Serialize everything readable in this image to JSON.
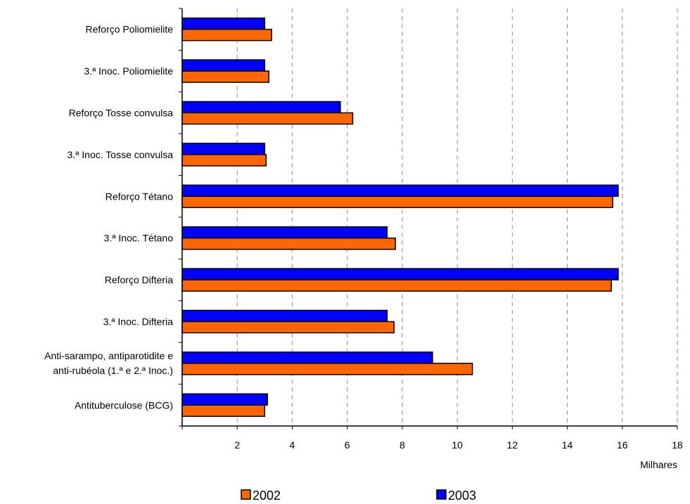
{
  "chart_data": {
    "type": "bar",
    "orientation": "horizontal",
    "categories": [
      "Reforço Poliomielite",
      "3.ª Inoc. Poliomielite",
      "Reforço Tosse convulsa",
      "3.ª Inoc. Tosse convulsa",
      "Reforço Tétano",
      "3.ª Inoc. Tétano",
      "Reforço Difteria",
      "3.ª Inoc. Difteria",
      [
        "Anti-sarampo, antiparotidite e",
        "anti-rubéola (1.ª e 2.ª Inoc.)"
      ],
      "Antituberculose (BCG)"
    ],
    "series": [
      {
        "name": "2003",
        "color": "#0000FF",
        "values": [
          3.0,
          3.0,
          5.75,
          3.0,
          15.85,
          7.45,
          15.85,
          7.45,
          9.1,
          3.1
        ]
      },
      {
        "name": "2002",
        "color": "#FF6600",
        "values": [
          3.25,
          3.15,
          6.2,
          3.05,
          15.65,
          7.75,
          15.6,
          7.7,
          10.55,
          3.0
        ]
      }
    ],
    "xlim": [
      0,
      18
    ],
    "xticks": [
      "2",
      "4",
      "6",
      "8",
      "10",
      "12",
      "14",
      "16",
      "18"
    ],
    "xunit": "Milhares",
    "grid": "vertical dashed",
    "legend": {
      "position": "bottom",
      "items": [
        {
          "label": "2002",
          "color": "#FF6600"
        },
        {
          "label": "2003",
          "color": "#0000FF"
        }
      ]
    }
  }
}
